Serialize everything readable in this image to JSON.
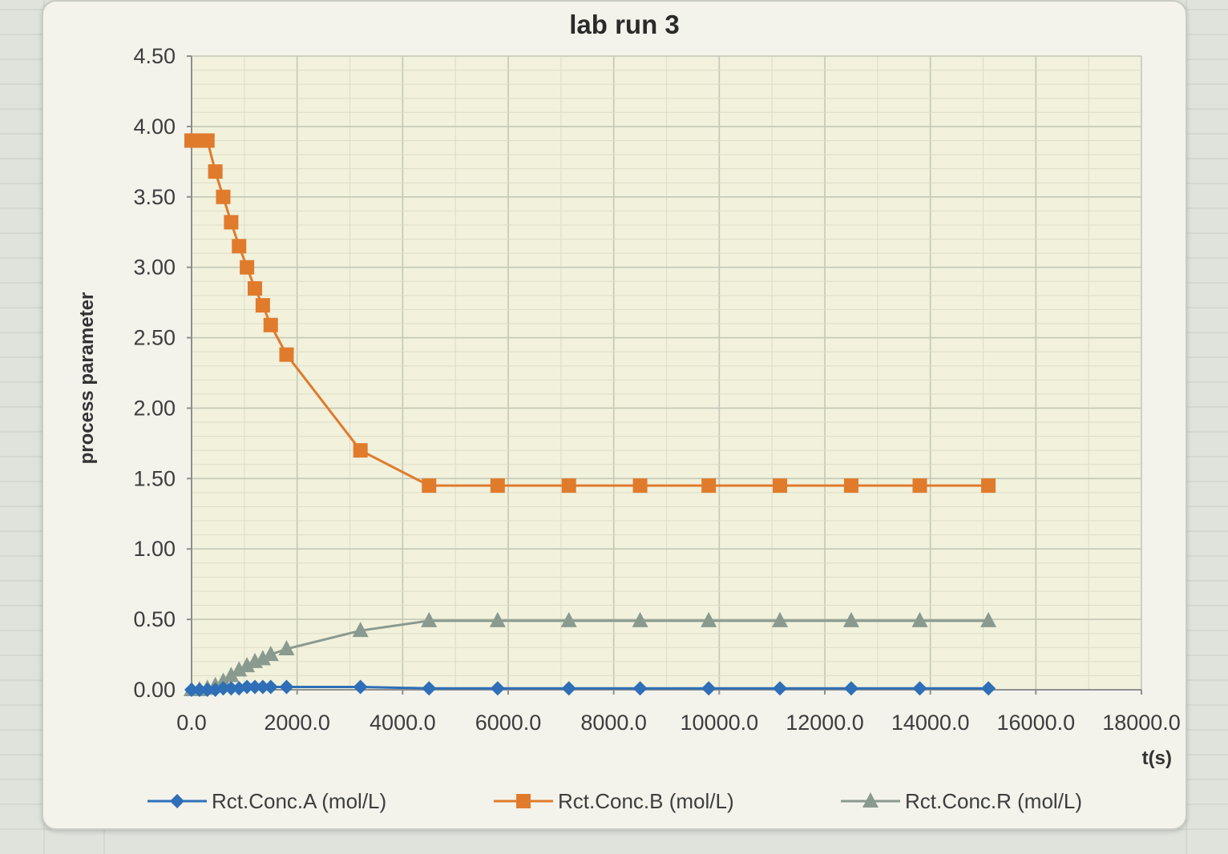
{
  "chart_data": {
    "type": "line",
    "title": "lab run 3",
    "ylabel": "process parameter",
    "xlabel": "t(s)",
    "xlim": [
      0,
      18000
    ],
    "ylim": [
      0,
      4.5
    ],
    "x_ticks": [
      "0.0",
      "2000.0",
      "4000.0",
      "6000.0",
      "8000.0",
      "10000.0",
      "12000.0",
      "14000.0",
      "16000.0",
      "18000.0"
    ],
    "y_ticks": [
      "0.00",
      "0.50",
      "1.00",
      "1.50",
      "2.00",
      "2.50",
      "3.00",
      "3.50",
      "4.00",
      "4.50"
    ],
    "grid": true,
    "legend_position": "bottom",
    "series": [
      {
        "name": "Rct.Conc.A (mol/L)",
        "color": "#2e6fb7",
        "marker": "diamond",
        "x": [
          0,
          150,
          300,
          450,
          600,
          750,
          900,
          1050,
          1200,
          1350,
          1500,
          1800,
          3200,
          4500,
          5800,
          7150,
          8500,
          9800,
          11150,
          12500,
          13800,
          15100
        ],
        "y": [
          0,
          0,
          0,
          0,
          0.01,
          0.01,
          0.01,
          0.02,
          0.02,
          0.02,
          0.02,
          0.02,
          0.02,
          0.01,
          0.01,
          0.01,
          0.01,
          0.01,
          0.01,
          0.01,
          0.01,
          0.01
        ]
      },
      {
        "name": "Rct.Conc.B (mol/L)",
        "color": "#e07b2c",
        "marker": "square",
        "x": [
          0,
          150,
          300,
          450,
          600,
          750,
          900,
          1050,
          1200,
          1350,
          1500,
          1800,
          3200,
          4500,
          5800,
          7150,
          8500,
          9800,
          11150,
          12500,
          13800,
          15100
        ],
        "y": [
          3.9,
          3.9,
          3.9,
          3.68,
          3.5,
          3.32,
          3.15,
          3.0,
          2.85,
          2.73,
          2.59,
          2.38,
          1.7,
          1.45,
          1.45,
          1.45,
          1.45,
          1.45,
          1.45,
          1.45,
          1.45,
          1.45
        ]
      },
      {
        "name": "Rct.Conc.R (mol/L)",
        "color": "#8a9a8f",
        "marker": "triangle",
        "x": [
          0,
          150,
          300,
          450,
          600,
          750,
          900,
          1050,
          1200,
          1350,
          1500,
          1800,
          3200,
          4500,
          5800,
          7150,
          8500,
          9800,
          11150,
          12500,
          13800,
          15100
        ],
        "y": [
          0,
          0,
          0.01,
          0.03,
          0.06,
          0.1,
          0.14,
          0.17,
          0.2,
          0.22,
          0.25,
          0.29,
          0.42,
          0.49,
          0.49,
          0.49,
          0.49,
          0.49,
          0.49,
          0.49,
          0.49,
          0.49
        ]
      }
    ]
  }
}
